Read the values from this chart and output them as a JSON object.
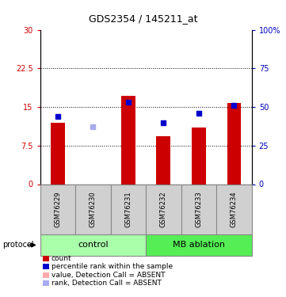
{
  "title": "GDS2354 / 145211_at",
  "samples": [
    "GSM76229",
    "GSM76230",
    "GSM76231",
    "GSM76232",
    "GSM76233",
    "GSM76234"
  ],
  "bar_values": [
    12.0,
    null,
    17.2,
    9.3,
    11.0,
    15.8
  ],
  "bar_colors": [
    "#cc0000",
    "#ffaaaa",
    "#cc0000",
    "#cc0000",
    "#cc0000",
    "#cc0000"
  ],
  "rank_values": [
    44,
    null,
    53,
    40,
    46,
    51
  ],
  "rank_absent": [
    null,
    37,
    null,
    null,
    null,
    null
  ],
  "ylim_left": [
    0,
    30
  ],
  "ylim_right": [
    0,
    100
  ],
  "yticks_left": [
    0,
    7.5,
    15,
    22.5,
    30
  ],
  "yticks_right": [
    0,
    25,
    50,
    75,
    100
  ],
  "ytick_labels_left": [
    "0",
    "7.5",
    "15",
    "22.5",
    "30"
  ],
  "ytick_labels_right": [
    "0",
    "25",
    "50",
    "75",
    "100%"
  ],
  "ylabel_left_color": "#cc0000",
  "ylabel_right_color": "#0000bb",
  "legend_items": [
    {
      "color": "#cc0000",
      "label": "count"
    },
    {
      "color": "#0000cc",
      "label": "percentile rank within the sample"
    },
    {
      "color": "#ffaaaa",
      "label": "value, Detection Call = ABSENT"
    },
    {
      "color": "#aaaaee",
      "label": "rank, Detection Call = ABSENT"
    }
  ],
  "bar_width": 0.4,
  "marker_size": 5,
  "group_info": [
    {
      "label": "control",
      "start": 0,
      "end": 2,
      "color": "#aaffaa"
    },
    {
      "label": "MB ablation",
      "start": 3,
      "end": 5,
      "color": "#55ee55"
    }
  ]
}
